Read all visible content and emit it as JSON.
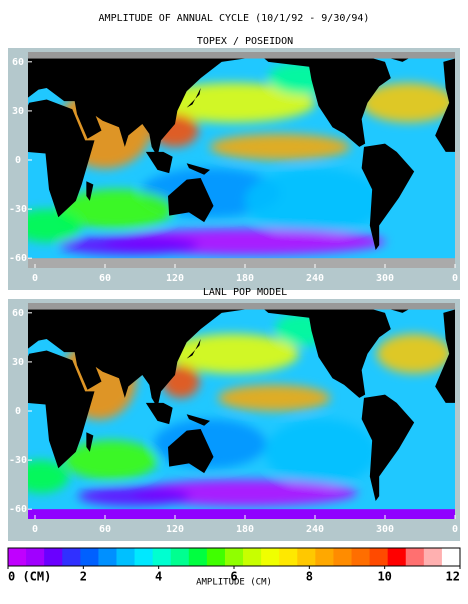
{
  "title": "AMPLITUDE OF ANNUAL CYCLE (10/1/92 - 9/30/94)",
  "panels": [
    {
      "title": "TOPEX / POSEIDON",
      "lonlim": [
        -6,
        360
      ],
      "latlim": [
        -66,
        66
      ],
      "yticks": [
        60,
        30,
        0,
        -30,
        -60
      ],
      "xticks": [
        0,
        60,
        120,
        180,
        240,
        300,
        {
          "value": 360,
          "label": "0"
        }
      ]
    },
    {
      "title": "LANL POP MODEL",
      "lonlim": [
        -6,
        360
      ],
      "latlim": [
        -66,
        66
      ],
      "yticks": [
        60,
        30,
        0,
        -30,
        -60
      ],
      "xticks": [
        0,
        60,
        120,
        180,
        240,
        300,
        {
          "value": 360,
          "label": "0"
        }
      ]
    }
  ],
  "colorbar": {
    "label": "AMPLITUDE (CM)",
    "range": [
      0,
      12
    ],
    "ticks": [
      {
        "value": 0,
        "label": "0 (CM)"
      },
      2,
      4,
      6,
      8,
      10,
      12
    ],
    "colors": [
      "#c000ff",
      "#a000ff",
      "#6a00ff",
      "#3030ff",
      "#0060ff",
      "#0090ff",
      "#00c0ff",
      "#00e8ff",
      "#00ffd0",
      "#00ff90",
      "#00ff40",
      "#40ff00",
      "#90ff00",
      "#c8ff00",
      "#f0ff00",
      "#ffe800",
      "#ffc800",
      "#ffa800",
      "#ff8c00",
      "#ff6e00",
      "#ff4a00",
      "#ff0000",
      "#ff7070",
      "#ffb0b0",
      "#ffffff"
    ]
  }
}
